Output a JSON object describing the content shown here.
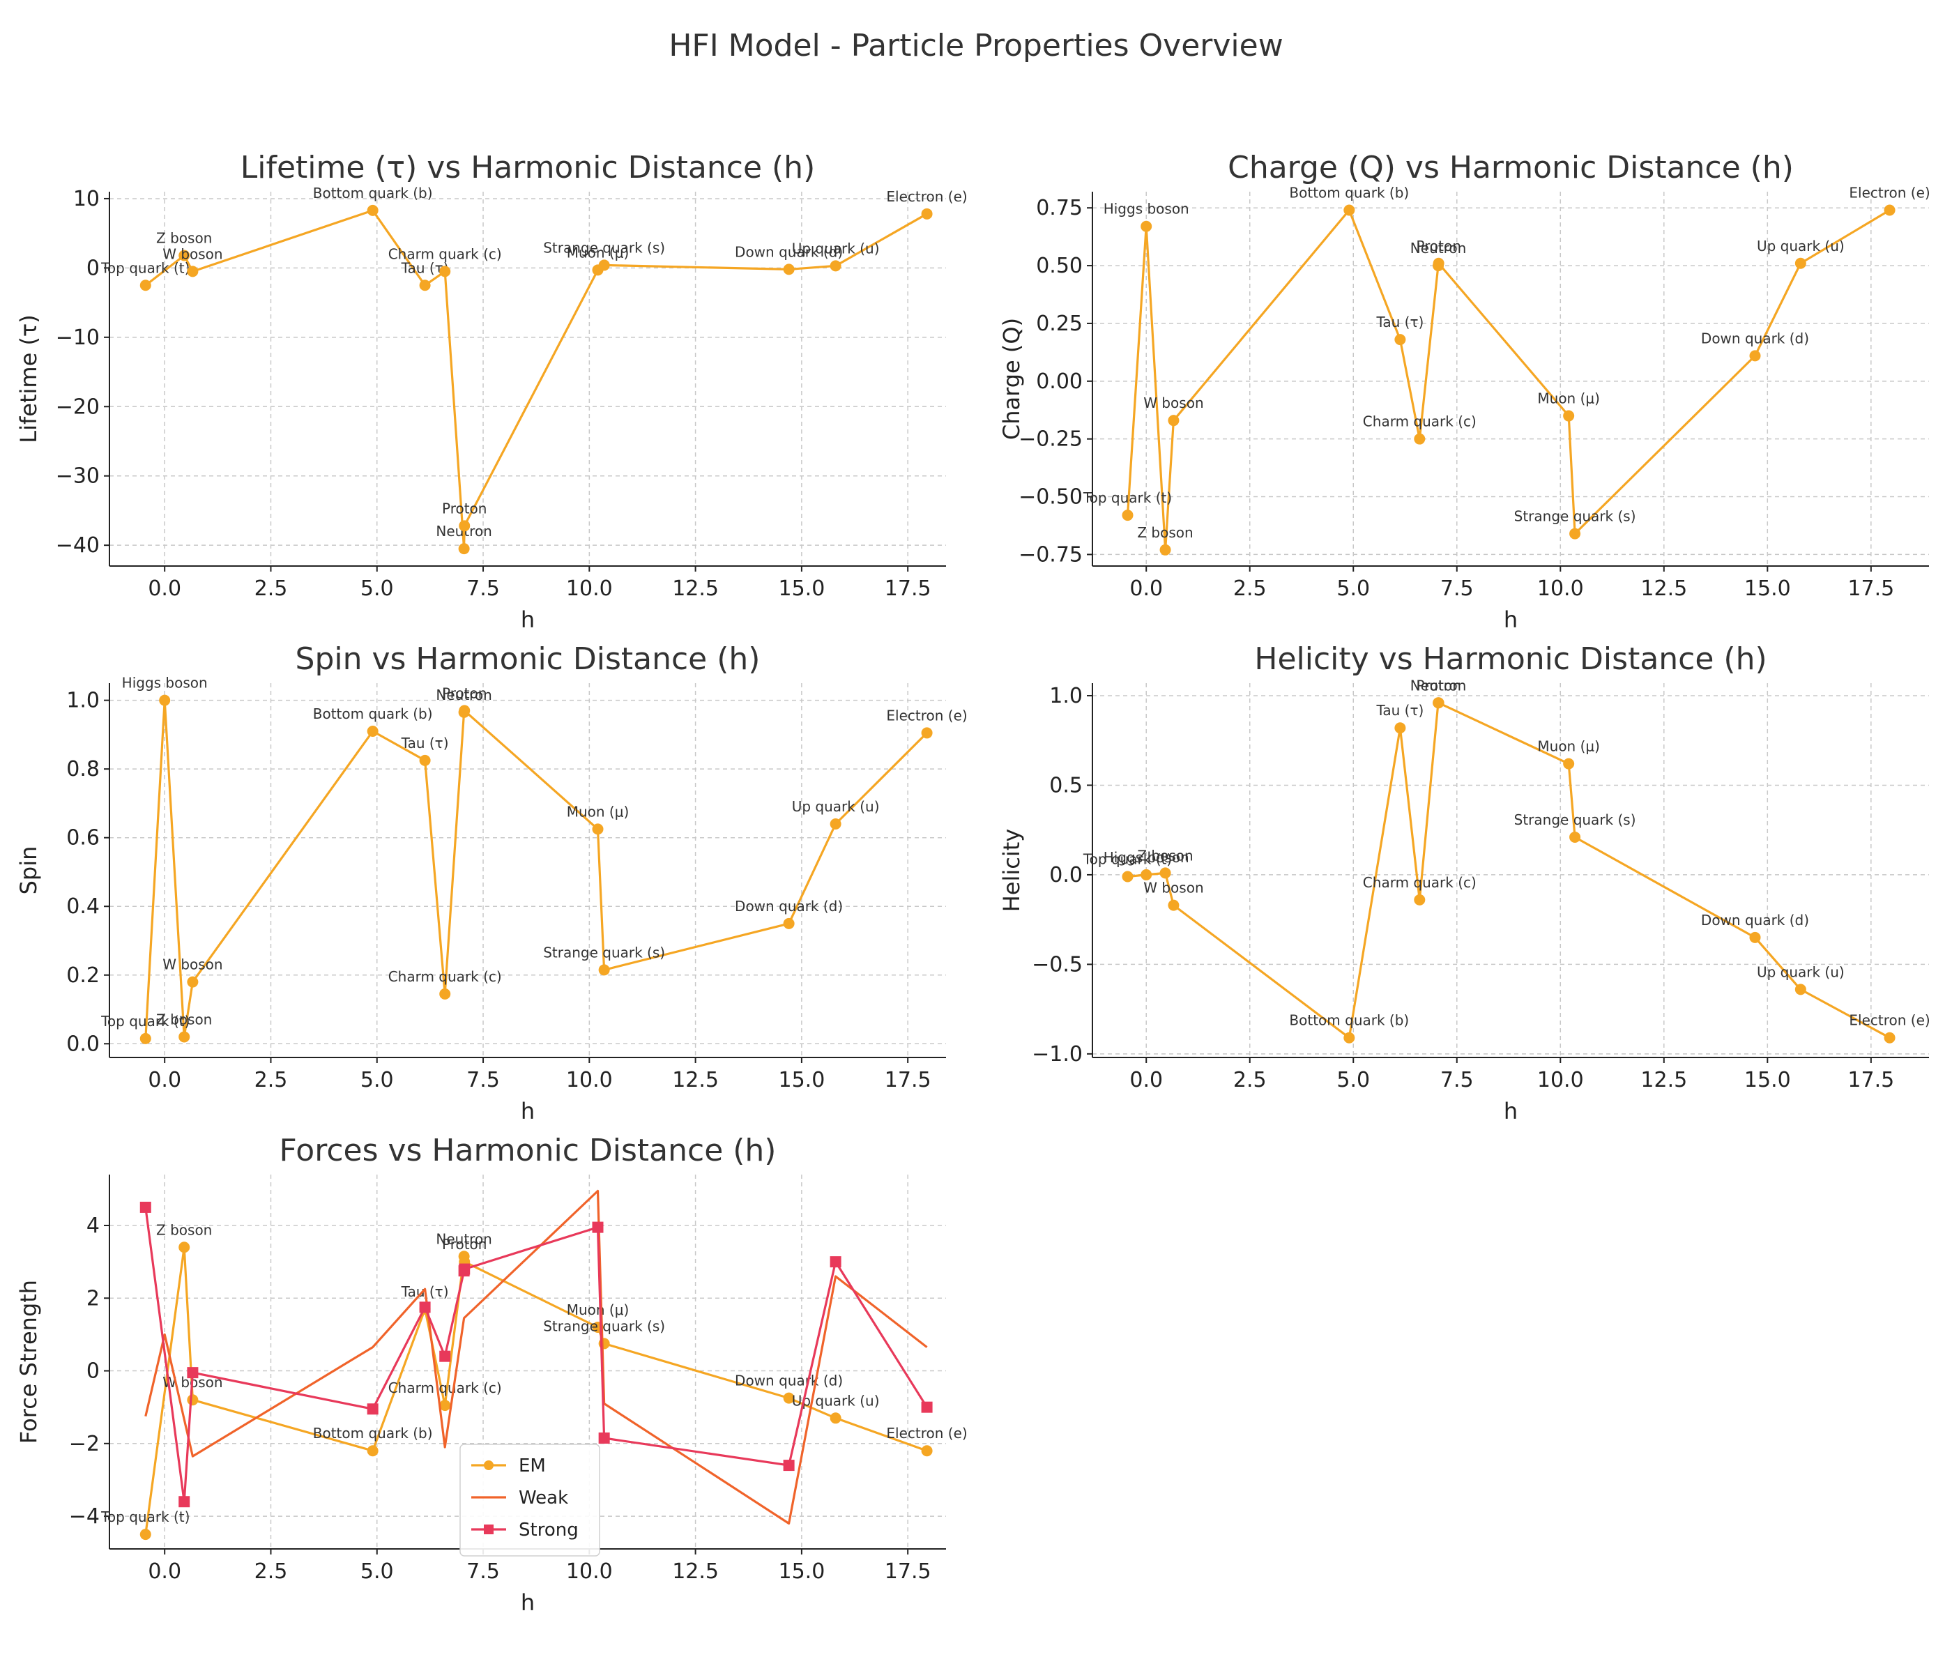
{
  "figure": {
    "title": "HFI Model - Particle Properties Overview"
  },
  "colors": {
    "em": "#f5a623",
    "weak": "#f0632a",
    "strong": "#e8395a",
    "grid": "#c8c8c8",
    "axis": "#222222"
  },
  "chart_data": [
    {
      "type": "line",
      "title": "Lifetime (τ) vs Harmonic Distance (h)",
      "xlabel": "h",
      "ylabel": "Lifetime (τ)",
      "xlim": [
        -1.3,
        18.4
      ],
      "ylim": [
        -43,
        11
      ],
      "xticks": [
        0,
        2.5,
        5,
        7.5,
        10,
        12.5,
        15,
        17.5
      ],
      "xtick_labels": [
        "0.0",
        "2.5",
        "5.0",
        "7.5",
        "10.0",
        "12.5",
        "15.0",
        "17.5"
      ],
      "yticks": [
        -40,
        -30,
        -20,
        -10,
        0,
        10
      ],
      "ytick_labels": [
        "−40",
        "−30",
        "−20",
        "−10",
        "0",
        "10"
      ],
      "grid": true,
      "series": [
        {
          "key": "em",
          "labels": [
            "Top quark (t)",
            "Z boson",
            "W boson",
            "Bottom quark (b)",
            "Tau (τ)",
            "Charm quark (c)",
            "Neutron",
            "Proton",
            "Muon (μ)",
            "Strange quark (s)",
            "Down quark (d)",
            "Up quark (u)",
            "Electron (e)"
          ],
          "x": [
            -0.45,
            0.46,
            0.66,
            4.9,
            6.13,
            6.6,
            7.05,
            7.06,
            10.2,
            10.35,
            14.7,
            15.8,
            17.95
          ],
          "y": [
            -2.5,
            1.8,
            -0.5,
            8.3,
            -2.5,
            -0.5,
            -40.5,
            -37.2,
            -0.3,
            0.4,
            -0.2,
            0.3,
            7.8
          ]
        }
      ]
    },
    {
      "type": "line",
      "title": "Charge (Q) vs Harmonic Distance (h)",
      "xlabel": "h",
      "ylabel": "Charge (Q)",
      "xlim": [
        -1.3,
        18.9
      ],
      "ylim": [
        -0.8,
        0.82
      ],
      "xticks": [
        0,
        2.5,
        5,
        7.5,
        10,
        12.5,
        15,
        17.5
      ],
      "xtick_labels": [
        "0.0",
        "2.5",
        "5.0",
        "7.5",
        "10.0",
        "12.5",
        "15.0",
        "17.5"
      ],
      "yticks": [
        -0.75,
        -0.5,
        -0.25,
        0,
        0.25,
        0.5,
        0.75
      ],
      "ytick_labels": [
        "−0.75",
        "−0.50",
        "−0.25",
        "0.00",
        "0.25",
        "0.50",
        "0.75"
      ],
      "grid": true,
      "series": [
        {
          "key": "em",
          "labels": [
            "Top quark (t)",
            "Higgs boson",
            "Z boson",
            "W boson",
            "Bottom quark (b)",
            "Tau (τ)",
            "Charm quark (c)",
            "Neutron",
            "Proton",
            "Muon (μ)",
            "Strange quark (s)",
            "Down quark (d)",
            "Up quark (u)",
            "Electron (e)"
          ],
          "x": [
            -0.45,
            0,
            0.46,
            0.66,
            4.9,
            6.13,
            6.6,
            7.05,
            7.06,
            10.2,
            10.35,
            14.7,
            15.8,
            17.95
          ],
          "y": [
            -0.58,
            0.67,
            -0.73,
            -0.17,
            0.74,
            0.18,
            -0.25,
            0.5,
            0.51,
            -0.15,
            -0.66,
            0.11,
            0.51,
            0.74
          ]
        }
      ]
    },
    {
      "type": "line",
      "title": "Spin vs Harmonic Distance (h)",
      "xlabel": "h",
      "ylabel": "Spin",
      "xlim": [
        -1.3,
        18.4
      ],
      "ylim": [
        -0.04,
        1.05
      ],
      "xticks": [
        0,
        2.5,
        5,
        7.5,
        10,
        12.5,
        15,
        17.5
      ],
      "xtick_labels": [
        "0.0",
        "2.5",
        "5.0",
        "7.5",
        "10.0",
        "12.5",
        "15.0",
        "17.5"
      ],
      "yticks": [
        0,
        0.2,
        0.4,
        0.6,
        0.8,
        1.0
      ],
      "ytick_labels": [
        "0.0",
        "0.2",
        "0.4",
        "0.6",
        "0.8",
        "1.0"
      ],
      "grid": true,
      "series": [
        {
          "key": "em",
          "labels": [
            "Top quark (t)",
            "Higgs boson",
            "Z boson",
            "W boson",
            "Bottom quark (b)",
            "Tau (τ)",
            "Charm quark (c)",
            "Neutron",
            "Proton",
            "Muon (μ)",
            "Strange quark (s)",
            "Down quark (d)",
            "Up quark (u)",
            "Electron (e)"
          ],
          "x": [
            -0.45,
            0,
            0.46,
            0.66,
            4.9,
            6.13,
            6.6,
            7.05,
            7.06,
            10.2,
            10.35,
            14.7,
            15.8,
            17.95
          ],
          "y": [
            0.015,
            1.0,
            0.02,
            0.18,
            0.91,
            0.825,
            0.145,
            0.965,
            0.97,
            0.625,
            0.215,
            0.35,
            0.64,
            0.905
          ]
        }
      ]
    },
    {
      "type": "line",
      "title": "Helicity vs Harmonic Distance (h)",
      "xlabel": "h",
      "ylabel": "Helicity",
      "xlim": [
        -1.3,
        18.9
      ],
      "ylim": [
        -1.02,
        1.07
      ],
      "xticks": [
        0,
        2.5,
        5,
        7.5,
        10,
        12.5,
        15,
        17.5
      ],
      "xtick_labels": [
        "0.0",
        "2.5",
        "5.0",
        "7.5",
        "10.0",
        "12.5",
        "15.0",
        "17.5"
      ],
      "yticks": [
        -1.0,
        -0.5,
        0,
        0.5,
        1.0
      ],
      "ytick_labels": [
        "−1.0",
        "−0.5",
        "0.0",
        "0.5",
        "1.0"
      ],
      "grid": true,
      "series": [
        {
          "key": "em",
          "labels": [
            "Top quark (t)",
            "Higgs boson",
            "Z boson",
            "W boson",
            "Bottom quark (b)",
            "Tau (τ)",
            "Charm quark (c)",
            "Neutron",
            "Proton",
            "Muon (μ)",
            "Strange quark (s)",
            "Down quark (d)",
            "Up quark (u)",
            "Electron (e)"
          ],
          "x": [
            -0.45,
            0,
            0.46,
            0.66,
            4.9,
            6.13,
            6.6,
            7.05,
            7.06,
            10.2,
            10.35,
            14.7,
            15.8,
            17.95
          ],
          "y": [
            -0.01,
            0.0,
            0.01,
            -0.17,
            -0.91,
            0.82,
            -0.14,
            0.96,
            0.96,
            0.62,
            0.21,
            -0.35,
            -0.64,
            -0.91
          ]
        }
      ]
    },
    {
      "type": "line",
      "title": "Forces vs Harmonic Distance (h)",
      "xlabel": "h",
      "ylabel": "Force Strength",
      "xlim": [
        -1.3,
        18.4
      ],
      "ylim": [
        -4.9,
        5.4
      ],
      "xticks": [
        0,
        2.5,
        5,
        7.5,
        10,
        12.5,
        15,
        17.5
      ],
      "xtick_labels": [
        "0.0",
        "2.5",
        "5.0",
        "7.5",
        "10.0",
        "12.5",
        "15.0",
        "17.5"
      ],
      "yticks": [
        -4,
        -2,
        0,
        2,
        4
      ],
      "ytick_labels": [
        "−4",
        "−2",
        "0",
        "2",
        "4"
      ],
      "grid": true,
      "legend": "lower-center",
      "series": [
        {
          "key": "em",
          "name": "EM",
          "marker": "circle",
          "labels": [
            "Top quark (t)",
            "Z boson",
            "W boson",
            "Bottom quark (b)",
            "Tau (τ)",
            "Charm quark (c)",
            "Neutron",
            "Proton",
            "Muon (μ)",
            "Strange quark (s)",
            "Down quark (d)",
            "Up quark (u)",
            "Electron (e)"
          ],
          "x": [
            -0.45,
            0.46,
            0.66,
            4.9,
            6.13,
            6.6,
            7.05,
            7.06,
            10.2,
            10.35,
            14.7,
            15.8,
            17.95
          ],
          "y": [
            -4.5,
            3.4,
            -0.8,
            -2.2,
            1.7,
            -0.95,
            3.15,
            3.0,
            1.2,
            0.75,
            -0.75,
            -1.3,
            -2.2
          ]
        },
        {
          "key": "weak",
          "name": "Weak",
          "marker": "none",
          "x": [
            -0.45,
            0,
            0.66,
            4.9,
            6.13,
            6.6,
            7.05,
            10.2,
            10.35,
            14.7,
            15.8,
            17.95
          ],
          "y": [
            -1.25,
            1.0,
            -2.35,
            0.65,
            2.25,
            -2.1,
            1.45,
            4.95,
            -0.9,
            -4.2,
            2.6,
            0.65
          ]
        },
        {
          "key": "strong",
          "name": "Strong",
          "marker": "square",
          "x": [
            -0.45,
            0.46,
            0.66,
            4.9,
            6.13,
            6.6,
            7.05,
            7.06,
            10.2,
            10.35,
            14.7,
            15.8,
            17.95
          ],
          "y": [
            4.5,
            -3.6,
            -0.05,
            -1.05,
            1.75,
            0.4,
            2.75,
            2.8,
            3.95,
            -1.85,
            -2.6,
            3.0,
            -1.0
          ]
        }
      ]
    }
  ]
}
